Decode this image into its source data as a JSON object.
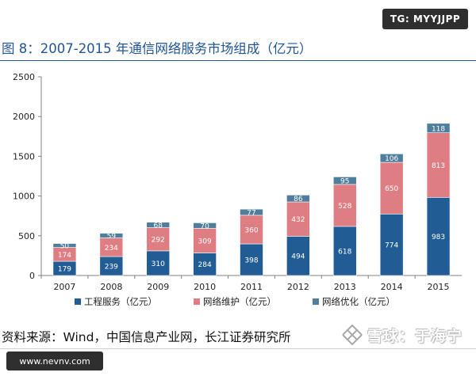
{
  "watermarks": {
    "top_right": "TG: MYYJJPP",
    "bottom_left": "www.nevnv.com",
    "xueqiu": "雪球：于海宁"
  },
  "figure": {
    "title": "图 8：2007-2015 年通信网络服务市场组成（亿元）",
    "source": "资料来源：Wind，中国信息产业网，长江证券研究所"
  },
  "chart_data": {
    "type": "bar",
    "stacked": true,
    "title": "图 8：2007-2015 年通信网络服务市场组成（亿元）",
    "xlabel": "",
    "ylabel": "",
    "categories": [
      "2007",
      "2008",
      "2009",
      "2010",
      "2011",
      "2012",
      "2013",
      "2014",
      "2015"
    ],
    "series": [
      {
        "name": "工程服务（亿元）",
        "color": "#215d94",
        "values": [
          179,
          239,
          310,
          284,
          398,
          494,
          618,
          774,
          983
        ]
      },
      {
        "name": "网络维护（亿元）",
        "color": "#de7e83",
        "values": [
          174,
          234,
          292,
          309,
          360,
          432,
          528,
          650,
          813
        ]
      },
      {
        "name": "网络优化（亿元）",
        "color": "#4f7d9c",
        "values": [
          50,
          59,
          68,
          70,
          77,
          86,
          95,
          106,
          118
        ]
      }
    ],
    "ylim": [
      0,
      2500
    ],
    "yticks": [
      0,
      500,
      1000,
      1500,
      2000,
      2500
    ],
    "grid": false,
    "legend_position": "bottom",
    "data_labels": true
  }
}
